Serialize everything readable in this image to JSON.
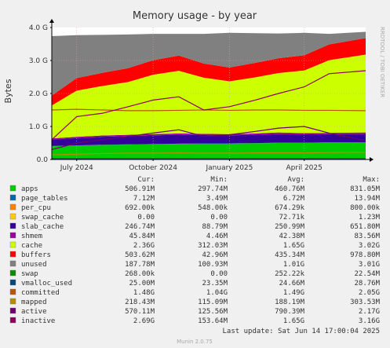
{
  "colors": {
    "background": "#f0f0f0",
    "plot_background": "#ffffff",
    "grid": "#d8a0a0",
    "axis": "#000000",
    "text": "#333333",
    "faint_text": "#a8a8a8"
  },
  "chart_data": {
    "type": "area",
    "stacked": true,
    "title": "Memory usage - by year",
    "ylabel": "Bytes",
    "xlabel": "",
    "grid": true,
    "legend_position": "bottom",
    "x_range": [
      "2024-06-01",
      "2025-06-14"
    ],
    "ylim": [
      0,
      4
    ],
    "y_unit": "G",
    "y_ticks": [
      {
        "value": 0,
        "label": "0.0"
      },
      {
        "value": 1,
        "label": "1.0 G"
      },
      {
        "value": 2,
        "label": "2.0 G"
      },
      {
        "value": 3,
        "label": "3.0 G"
      },
      {
        "value": 4,
        "label": "4.0 G"
      }
    ],
    "x_ticks": [
      {
        "value": "2024-07-01",
        "label": "July 2024"
      },
      {
        "value": "2024-10-01",
        "label": "October 2024"
      },
      {
        "value": "2025-01-01",
        "label": "January 2025"
      },
      {
        "value": "2025-04-01",
        "label": "April 2025"
      }
    ],
    "x_samples": [
      "2024-06-01",
      "2024-07-01",
      "2024-08-01",
      "2024-09-01",
      "2024-10-01",
      "2024-11-01",
      "2024-12-01",
      "2025-01-01",
      "2025-02-01",
      "2025-03-01",
      "2025-04-01",
      "2025-05-01",
      "2025-06-14"
    ],
    "stacked_series": [
      {
        "name": "apps",
        "color": "#00cc00",
        "values": [
          0.4,
          0.42,
          0.44,
          0.45,
          0.46,
          0.47,
          0.48,
          0.48,
          0.49,
          0.5,
          0.5,
          0.51,
          0.51
        ]
      },
      {
        "name": "page_tables",
        "color": "#0066b3",
        "values": [
          0.006,
          0.006,
          0.006,
          0.007,
          0.007,
          0.007,
          0.007,
          0.007,
          0.007,
          0.007,
          0.007,
          0.007,
          0.007
        ]
      },
      {
        "name": "per_cpu",
        "color": "#ff8000",
        "values": [
          0.0007,
          0.0007,
          0.0007,
          0.0007,
          0.0007,
          0.0007,
          0.0007,
          0.0007,
          0.0007,
          0.0007,
          0.0007,
          0.0007,
          0.0007
        ]
      },
      {
        "name": "swap_cache",
        "color": "#ffcc00",
        "values": [
          0.0001,
          0.0001,
          0.0001,
          0.0001,
          0.0001,
          0.0001,
          0.0001,
          0.0001,
          0.0001,
          0.0001,
          0.0001,
          0.0001,
          0.0
        ]
      },
      {
        "name": "slab_cache",
        "color": "#330099",
        "values": [
          0.2,
          0.22,
          0.24,
          0.25,
          0.26,
          0.27,
          0.25,
          0.24,
          0.25,
          0.26,
          0.25,
          0.25,
          0.25
        ]
      },
      {
        "name": "shmem",
        "color": "#990099",
        "values": [
          0.03,
          0.04,
          0.04,
          0.04,
          0.04,
          0.04,
          0.04,
          0.04,
          0.04,
          0.05,
          0.04,
          0.04,
          0.05
        ]
      },
      {
        "name": "cache",
        "color": "#ccff00",
        "values": [
          1.0,
          1.4,
          1.5,
          1.6,
          1.8,
          1.9,
          1.7,
          1.6,
          1.7,
          1.8,
          1.9,
          2.2,
          2.36
        ]
      },
      {
        "name": "buffers",
        "color": "#ff0000",
        "values": [
          0.3,
          0.38,
          0.4,
          0.42,
          0.44,
          0.46,
          0.43,
          0.42,
          0.44,
          0.45,
          0.46,
          0.48,
          0.5
        ]
      },
      {
        "name": "unused",
        "color": "#808080",
        "values": [
          1.8,
          1.3,
          1.15,
          1.02,
          0.8,
          0.66,
          0.9,
          1.05,
          0.9,
          0.75,
          0.68,
          0.32,
          0.19
        ]
      },
      {
        "name": "swap",
        "color": "#008f00",
        "values": [
          0.0,
          0.0,
          0.0,
          0.0,
          0.0,
          0.0,
          0.0,
          0.0,
          0.0,
          0.0,
          0.0,
          0.0,
          0.0
        ]
      }
    ],
    "line_series": [
      {
        "name": "vmalloc_used",
        "color": "#00487d",
        "values": [
          0.024,
          0.024,
          0.024,
          0.025,
          0.025,
          0.025,
          0.025,
          0.025,
          0.025,
          0.025,
          0.025,
          0.025,
          0.025
        ]
      },
      {
        "name": "committed",
        "color": "#b35a00",
        "values": [
          1.5,
          1.52,
          1.5,
          1.48,
          1.48,
          1.49,
          1.5,
          1.49,
          1.5,
          1.5,
          1.49,
          1.49,
          1.48
        ]
      },
      {
        "name": "mapped",
        "color": "#b38f00",
        "values": [
          0.14,
          0.16,
          0.18,
          0.19,
          0.19,
          0.2,
          0.19,
          0.19,
          0.2,
          0.2,
          0.2,
          0.21,
          0.22
        ]
      },
      {
        "name": "active",
        "color": "#6b006b",
        "values": [
          0.3,
          0.5,
          0.6,
          0.7,
          0.8,
          0.9,
          0.7,
          0.75,
          0.85,
          0.95,
          1.0,
          0.8,
          0.57
        ]
      },
      {
        "name": "inactive",
        "color": "#8f005c",
        "values": [
          0.6,
          1.3,
          1.4,
          1.6,
          1.8,
          1.9,
          1.5,
          1.6,
          1.8,
          2.0,
          2.2,
          2.6,
          2.69
        ]
      }
    ]
  },
  "watermark": "RRDTOOL / TOBI OETIKER",
  "legend": {
    "headers": {
      "cur": "Cur:",
      "min": "Min:",
      "avg": "Avg:",
      "max": "Max:"
    },
    "rows": [
      {
        "name": "apps",
        "color": "#00cc00",
        "cur": "506.91M",
        "min": "297.74M",
        "avg": "460.76M",
        "max": "831.05M"
      },
      {
        "name": "page_tables",
        "color": "#0066b3",
        "cur": "7.12M",
        "min": "3.49M",
        "avg": "6.72M",
        "max": "13.94M"
      },
      {
        "name": "per_cpu",
        "color": "#ff8000",
        "cur": "692.00k",
        "min": "548.00k",
        "avg": "674.29k",
        "max": "800.00k"
      },
      {
        "name": "swap_cache",
        "color": "#ffcc00",
        "cur": "0.00",
        "min": "0.00",
        "avg": "72.71k",
        "max": "1.23M"
      },
      {
        "name": "slab_cache",
        "color": "#330099",
        "cur": "246.74M",
        "min": "88.79M",
        "avg": "250.99M",
        "max": "651.80M"
      },
      {
        "name": "shmem",
        "color": "#990099",
        "cur": "45.84M",
        "min": "4.46M",
        "avg": "42.38M",
        "max": "83.56M"
      },
      {
        "name": "cache",
        "color": "#ccff00",
        "cur": "2.36G",
        "min": "312.03M",
        "avg": "1.65G",
        "max": "3.02G"
      },
      {
        "name": "buffers",
        "color": "#ff0000",
        "cur": "503.62M",
        "min": "42.96M",
        "avg": "435.34M",
        "max": "978.80M"
      },
      {
        "name": "unused",
        "color": "#808080",
        "cur": "187.78M",
        "min": "100.93M",
        "avg": "1.01G",
        "max": "3.01G"
      },
      {
        "name": "swap",
        "color": "#008f00",
        "cur": "268.00k",
        "min": "0.00",
        "avg": "252.22k",
        "max": "22.54M"
      },
      {
        "name": "vmalloc_used",
        "color": "#00487d",
        "cur": "25.00M",
        "min": "23.35M",
        "avg": "24.66M",
        "max": "28.76M"
      },
      {
        "name": "committed",
        "color": "#b35a00",
        "cur": "1.48G",
        "min": "1.04G",
        "avg": "1.49G",
        "max": "2.05G"
      },
      {
        "name": "mapped",
        "color": "#b38f00",
        "cur": "218.43M",
        "min": "115.09M",
        "avg": "188.19M",
        "max": "303.53M"
      },
      {
        "name": "active",
        "color": "#6b006b",
        "cur": "570.11M",
        "min": "125.56M",
        "avg": "790.39M",
        "max": "2.17G"
      },
      {
        "name": "inactive",
        "color": "#8f005c",
        "cur": "2.69G",
        "min": "153.64M",
        "avg": "1.65G",
        "max": "3.16G"
      }
    ]
  },
  "last_update": "Last update: Sat Jun 14 17:00:04 2025",
  "footer": "Munin 2.0.75"
}
